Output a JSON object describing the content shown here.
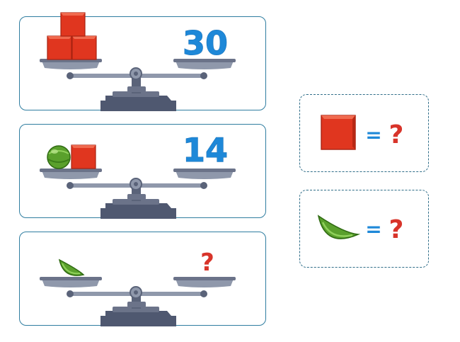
{
  "scales": [
    {
      "id": "scale-1",
      "right_value": "30",
      "left_items": [
        "red-cube",
        "red-cube",
        "red-cube"
      ]
    },
    {
      "id": "scale-2",
      "right_value": "14",
      "left_items": [
        "green-ball",
        "red-cube"
      ]
    },
    {
      "id": "scale-3",
      "right_value": "?",
      "left_items": [
        "green-melon-slice"
      ]
    }
  ],
  "equations": [
    {
      "item": "red-cube",
      "equals": "=",
      "answer": "?"
    },
    {
      "item": "green-melon-slice",
      "equals": "=",
      "answer": "?"
    }
  ],
  "colors": {
    "panel_border": "#2f7da0",
    "number_blue": "#1e88d8",
    "question_red": "#d8342a",
    "equals_blue": "#1e88d8",
    "cube_red": "#e0361f",
    "melon_green": "#5aa02c",
    "scale_gray": "#5a6379"
  }
}
